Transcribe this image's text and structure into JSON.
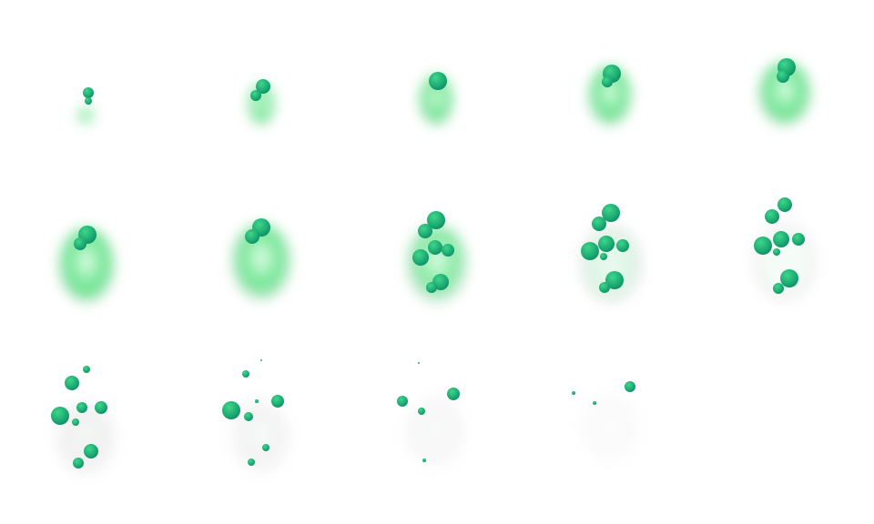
{
  "sprite_sheet": {
    "columns": 5,
    "rows": 3,
    "frame_count": 14,
    "colors": {
      "background": "#ffffff",
      "bubble_light": "#3fd68a",
      "bubble_mid": "#1aa872",
      "bubble_dark": "#0b6f5c",
      "smoke_green": "#4fe07a",
      "smoke_grey": "#d8d8d8"
    },
    "icon": "green-bubble-smoke-explosion-sprite"
  }
}
